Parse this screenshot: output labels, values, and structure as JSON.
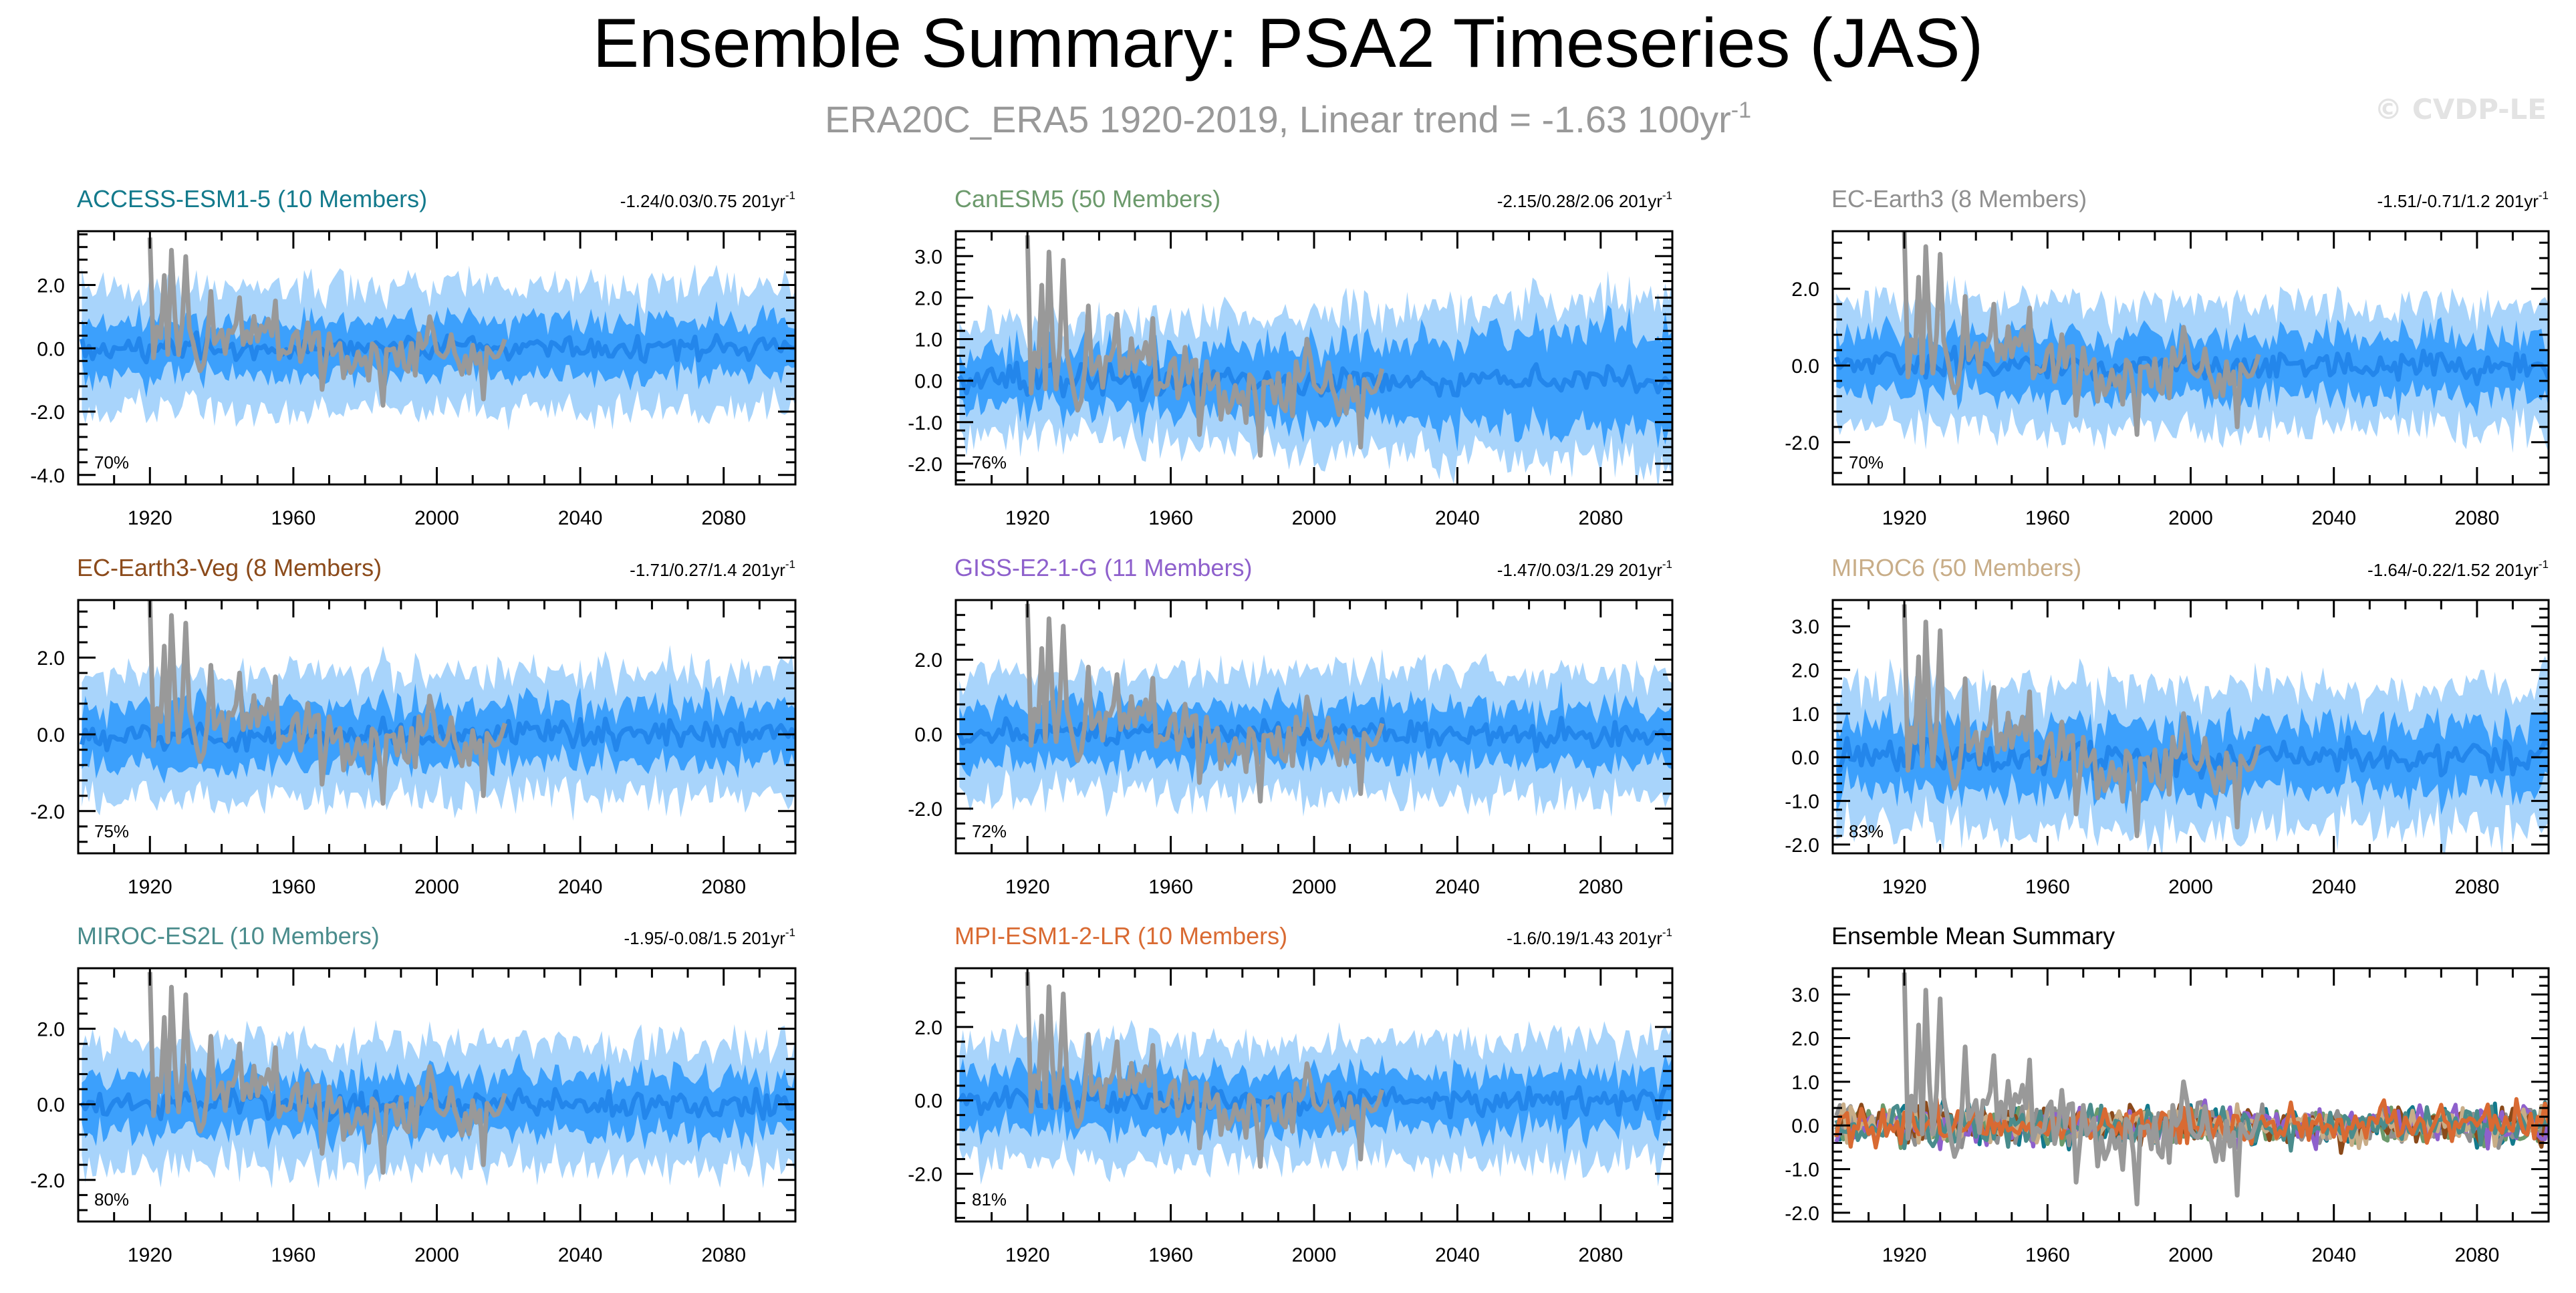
{
  "title": "Ensemble Summary: PSA2 Timeseries (JAS)",
  "subtitle": "ERA20C_ERA5 1920-2019, Linear trend = -1.63 100yr",
  "subtitle_sup": "-1",
  "watermark": "© CVDP-LE",
  "trend_unit": " 201yr",
  "trend_unit_sup": "-1",
  "colors": {
    "outer_band": "#a8d4fb",
    "inner_band": "#3ca0fc",
    "mean_line": "#2386eb",
    "obs_line": "#999999",
    "frame": "#000000"
  },
  "chart_data": [
    {
      "type": "area",
      "name": "ACCESS-ESM1-5",
      "label": "ACCESS-ESM1-5 (10 Members)",
      "color": "#137a8c",
      "trend": "-1.24/0.03/0.75",
      "pct": "70%",
      "ylim": [
        -4.3,
        3.7
      ],
      "yticks": [
        "2.0",
        "0.0",
        "-2.0",
        "-4.0"
      ],
      "ytick_values": [
        2,
        0,
        -2,
        -4
      ],
      "xlim": [
        1900,
        2100
      ],
      "xticks": [
        "1920",
        "1960",
        "2000",
        "2040",
        "2080"
      ],
      "outer_half": [
        1.9,
        1.9
      ],
      "inner_half": [
        0.9,
        0.9
      ]
    },
    {
      "type": "area",
      "name": "CanESM5",
      "label": "CanESM5 (50 Members)",
      "color": "#6c9a6c",
      "trend": "-2.15/0.28/2.06",
      "pct": "76%",
      "ylim": [
        -2.5,
        3.6
      ],
      "yticks": [
        "3.0",
        "2.0",
        "1.0",
        "0.0",
        "-1.0",
        "-2.0"
      ],
      "ytick_values": [
        3,
        2,
        1,
        0,
        -1,
        -2
      ],
      "xlim": [
        1900,
        2100
      ],
      "xticks": [
        "1920",
        "1960",
        "2000",
        "2040",
        "2080"
      ],
      "outer_half": [
        1.3,
        2.0
      ],
      "inner_half": [
        0.6,
        1.3
      ]
    },
    {
      "type": "area",
      "name": "EC-Earth3",
      "label": "EC-Earth3 (8 Members)",
      "color": "#8f8f8f",
      "trend": "-1.51/-0.71/1.2",
      "pct": "70%",
      "ylim": [
        -3.1,
        3.5
      ],
      "yticks": [
        "2.0",
        "0.0",
        "-2.0"
      ],
      "ytick_values": [
        2,
        0,
        -2
      ],
      "xlim": [
        1900,
        2100
      ],
      "xticks": [
        "1920",
        "1960",
        "2000",
        "2040",
        "2080"
      ],
      "outer_half": [
        1.6,
        1.6
      ],
      "inner_half": [
        0.8,
        0.8
      ]
    },
    {
      "type": "area",
      "name": "EC-Earth3-Veg",
      "label": "EC-Earth3-Veg (8 Members)",
      "color": "#8b4a1a",
      "trend": "-1.71/0.27/1.4",
      "pct": "75%",
      "ylim": [
        -3.1,
        3.5
      ],
      "yticks": [
        "2.0",
        "0.0",
        "-2.0"
      ],
      "ytick_values": [
        2,
        0,
        -2
      ],
      "xlim": [
        1900,
        2100
      ],
      "xticks": [
        "1920",
        "1960",
        "2000",
        "2040",
        "2080"
      ],
      "outer_half": [
        1.6,
        1.6
      ],
      "inner_half": [
        0.8,
        0.8
      ]
    },
    {
      "type": "area",
      "name": "GISS-E2-1-G",
      "label": "GISS-E2-1-G (11 Members)",
      "color": "#8e60cc",
      "trend": "-1.47/0.03/1.29",
      "pct": "72%",
      "ylim": [
        -3.2,
        3.6
      ],
      "yticks": [
        "2.0",
        "0.0",
        "-2.0"
      ],
      "ytick_values": [
        2,
        0,
        -2
      ],
      "xlim": [
        1900,
        2100
      ],
      "xticks": [
        "1920",
        "1960",
        "2000",
        "2040",
        "2080"
      ],
      "outer_half": [
        1.6,
        1.6
      ],
      "inner_half": [
        0.8,
        0.8
      ]
    },
    {
      "type": "area",
      "name": "MIROC6",
      "label": "MIROC6 (50 Members)",
      "color": "#c8ad88",
      "trend": "-1.64/-0.22/1.52",
      "pct": "83%",
      "ylim": [
        -2.2,
        3.6
      ],
      "yticks": [
        "3.0",
        "2.0",
        "1.0",
        "0.0",
        "-1.0",
        "-2.0"
      ],
      "ytick_values": [
        3,
        2,
        1,
        0,
        -1,
        -2
      ],
      "xlim": [
        1900,
        2100
      ],
      "xticks": [
        "1920",
        "1960",
        "2000",
        "2040",
        "2080"
      ],
      "outer_half": [
        1.6,
        1.6
      ],
      "inner_half": [
        0.8,
        0.8
      ]
    },
    {
      "type": "area",
      "name": "MIROC-ES2L",
      "label": "MIROC-ES2L (10 Members)",
      "color": "#4a8c8c",
      "trend": "-1.95/-0.08/1.5",
      "pct": "80%",
      "ylim": [
        -3.1,
        3.6
      ],
      "yticks": [
        "2.0",
        "0.0",
        "-2.0"
      ],
      "ytick_values": [
        2,
        0,
        -2
      ],
      "xlim": [
        1900,
        2100
      ],
      "xticks": [
        "1920",
        "1960",
        "2000",
        "2040",
        "2080"
      ],
      "outer_half": [
        1.6,
        1.6
      ],
      "inner_half": [
        0.8,
        0.8
      ]
    },
    {
      "type": "area",
      "name": "MPI-ESM1-2-LR",
      "label": "MPI-ESM1-2-LR (10 Members)",
      "color": "#d96a32",
      "trend": "-1.6/0.19/1.43",
      "pct": "81%",
      "ylim": [
        -3.3,
        3.6
      ],
      "yticks": [
        "2.0",
        "0.0",
        "-2.0"
      ],
      "ytick_values": [
        2,
        0,
        -2
      ],
      "xlim": [
        1900,
        2100
      ],
      "xticks": [
        "1920",
        "1960",
        "2000",
        "2040",
        "2080"
      ],
      "outer_half": [
        1.6,
        1.6
      ],
      "inner_half": [
        0.8,
        0.8
      ]
    },
    {
      "type": "line",
      "name": "Ensemble Mean Summary",
      "label": "Ensemble Mean Summary",
      "color": "#000000",
      "trend": "",
      "pct": "",
      "ylim": [
        -2.2,
        3.6
      ],
      "yticks": [
        "3.0",
        "2.0",
        "1.0",
        "0.0",
        "-1.0",
        "-2.0"
      ],
      "ytick_values": [
        3,
        2,
        1,
        0,
        -1,
        -2
      ],
      "xlim": [
        1900,
        2100
      ],
      "xticks": [
        "1920",
        "1960",
        "2000",
        "2040",
        "2080"
      ],
      "series_colors": [
        "#137a8c",
        "#6c9a6c",
        "#8f8f8f",
        "#8b4a1a",
        "#8e60cc",
        "#c8ad88",
        "#4a8c8c",
        "#d96a32"
      ]
    }
  ],
  "observations": {
    "name": "ERA20C_ERA5",
    "years": [
      1920,
      2019
    ],
    "notable_values": [
      {
        "year": 1920,
        "value": 3.5
      },
      {
        "year": 1921,
        "value": -0.3
      },
      {
        "year": 1924,
        "value": 2.3
      },
      {
        "year": 1926,
        "value": 3.1
      },
      {
        "year": 1928,
        "value": -0.2
      },
      {
        "year": 1930,
        "value": 2.9
      },
      {
        "year": 1932,
        "value": 0.2
      },
      {
        "year": 1937,
        "value": 1.8
      },
      {
        "year": 1945,
        "value": 1.6
      },
      {
        "year": 1955,
        "value": 1.5
      },
      {
        "year": 1968,
        "value": -1.3
      },
      {
        "year": 1985,
        "value": -1.8
      },
      {
        "year": 1998,
        "value": 1.0
      },
      {
        "year": 2013,
        "value": -1.6
      }
    ]
  }
}
